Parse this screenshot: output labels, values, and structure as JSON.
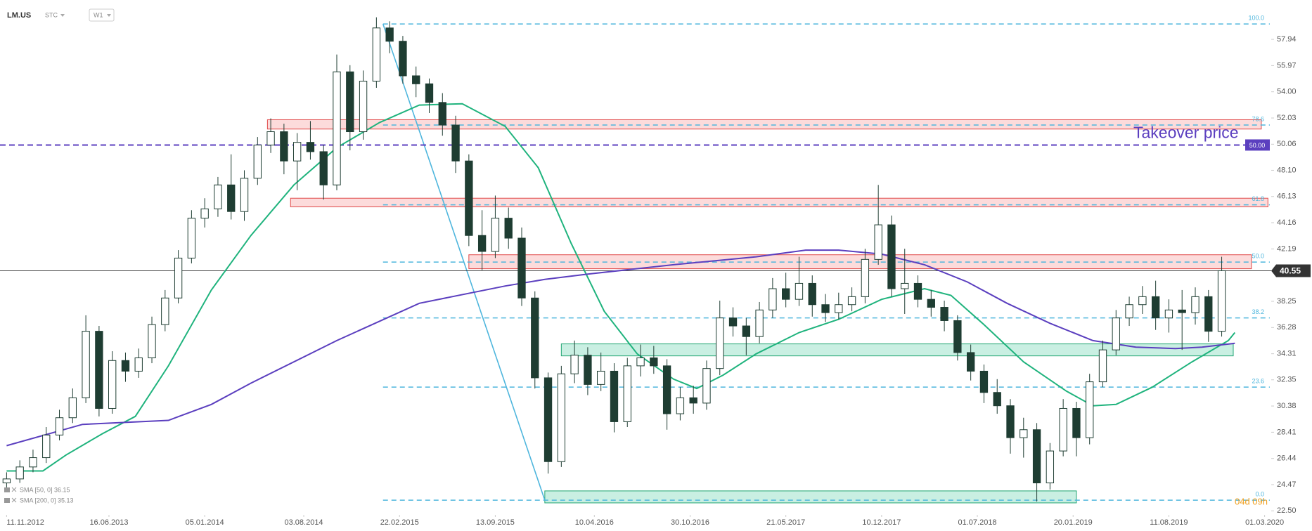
{
  "chart_data": {
    "type": "candlestick",
    "symbol": "LM.US",
    "source": "STC",
    "interval": "W1",
    "countdown": "04d 09h",
    "xlim": [
      -2,
      383
    ],
    "ylim": [
      22.2,
      60.9
    ],
    "xticks": [
      {
        "value": 0,
        "label": "11.11.2012"
      },
      {
        "value": 31,
        "label": "16.06.2013"
      },
      {
        "value": 60,
        "label": "05.01.2014"
      },
      {
        "value": 90,
        "label": "03.08.2014"
      },
      {
        "value": 119,
        "label": "22.02.2015"
      },
      {
        "value": 148,
        "label": "13.09.2015"
      },
      {
        "value": 178,
        "label": "10.04.2016"
      },
      {
        "value": 207,
        "label": "30.10.2016"
      },
      {
        "value": 236,
        "label": "21.05.2017"
      },
      {
        "value": 265,
        "label": "10.12.2017"
      },
      {
        "value": 294,
        "label": "01.07.2018"
      },
      {
        "value": 323,
        "label": "20.01.2019"
      },
      {
        "value": 352,
        "label": "11.08.2019"
      },
      {
        "value": 381,
        "label": "01.03.2020"
      }
    ],
    "yticks": [
      {
        "value": 57.94,
        "label": "57.94"
      },
      {
        "value": 55.97,
        "label": "55.97"
      },
      {
        "value": 54.0,
        "label": "54.00"
      },
      {
        "value": 52.03,
        "label": "52.03"
      },
      {
        "value": 50.06,
        "label": "50.06"
      },
      {
        "value": 48.1,
        "label": "48.10"
      },
      {
        "value": 46.13,
        "label": "46.13"
      },
      {
        "value": 44.16,
        "label": "44.16"
      },
      {
        "value": 42.19,
        "label": "42.19"
      },
      {
        "value": 38.25,
        "label": "38.25"
      },
      {
        "value": 36.28,
        "label": "36.28"
      },
      {
        "value": 34.31,
        "label": "34.31"
      },
      {
        "value": 32.35,
        "label": "32.35"
      },
      {
        "value": 30.38,
        "label": "30.38"
      },
      {
        "value": 28.41,
        "label": "28.41"
      },
      {
        "value": 26.44,
        "label": "26.44"
      },
      {
        "value": 24.47,
        "label": "24.47"
      },
      {
        "value": 22.5,
        "label": "22.50"
      }
    ],
    "up_color": "#ffffff",
    "down_color": "#1e3d32",
    "candles": {
      "x": [
        0,
        4,
        8,
        12,
        16,
        20,
        24,
        28,
        32,
        36,
        40,
        44,
        48,
        52,
        56,
        60,
        64,
        68,
        72,
        76,
        80,
        84,
        88,
        92,
        96,
        100,
        104,
        108,
        112,
        116,
        120,
        124,
        128,
        132,
        136,
        140,
        144,
        148,
        152,
        156,
        160,
        164,
        168,
        172,
        176,
        180,
        184,
        188,
        192,
        196,
        200,
        204,
        208,
        212,
        216,
        220,
        224,
        228,
        232,
        236,
        240,
        244,
        248,
        252,
        256,
        260,
        264,
        268,
        272,
        276,
        280,
        284,
        288,
        292,
        296,
        300,
        304,
        308,
        312,
        316,
        320,
        324,
        328,
        332,
        336,
        340,
        344,
        348,
        352,
        356,
        360,
        364,
        368
      ],
      "open": [
        24.6,
        24.9,
        25.8,
        26.5,
        28.2,
        29.5,
        31,
        36,
        30.2,
        33.8,
        33,
        34,
        36.5,
        38.5,
        41.5,
        44.5,
        45.2,
        47,
        45,
        47.5,
        50,
        51,
        48.8,
        50.2,
        49.5,
        47,
        55.5,
        51,
        54.8,
        58.8,
        57.8,
        55.2,
        54.6,
        53.2,
        51.5,
        48.8,
        43.2,
        42,
        44.5,
        43,
        38.5,
        32.5,
        26.2,
        32.8,
        34.2,
        32,
        33,
        29.2,
        33.4,
        34,
        33.4,
        29.8,
        31,
        30.6,
        33.2,
        37,
        36.4,
        35.6,
        37.6,
        39.2,
        38.4,
        39.6,
        38,
        37.4,
        38,
        38.6,
        41.4,
        44,
        39.2,
        39.6,
        38.4,
        37.8,
        36.8,
        34.4,
        33,
        31.4,
        30.4,
        28,
        28.6,
        24.6,
        27,
        30.2,
        28,
        32.2,
        34.6,
        37,
        38,
        38.6,
        37,
        37.6,
        37.4,
        38.6,
        36
      ],
      "high": [
        25.4,
        26.3,
        27.1,
        28.8,
        30.1,
        31.7,
        37.2,
        36.4,
        34.5,
        34.4,
        34.7,
        37.1,
        39.1,
        42.1,
        45.1,
        46,
        47.6,
        49.3,
        48.1,
        50.6,
        52,
        51.6,
        50.9,
        51.8,
        50,
        56.8,
        56,
        55.6,
        59.6,
        59.3,
        58.2,
        55.9,
        55,
        53.9,
        52.2,
        49.3,
        45.1,
        46.2,
        45.3,
        43.8,
        39,
        32.9,
        33.4,
        35.3,
        34.8,
        34.4,
        33.6,
        34,
        35,
        34.9,
        33.9,
        31.8,
        31.9,
        33.8,
        38.3,
        37.8,
        37,
        38.2,
        40,
        40.4,
        41.6,
        40.2,
        38.8,
        38.9,
        39.3,
        42.2,
        47,
        44.7,
        42.2,
        40.2,
        39.1,
        38.3,
        37.2,
        35,
        33.5,
        32.4,
        30.9,
        29.5,
        29.1,
        27.6,
        30.9,
        30.7,
        32.8,
        35.3,
        37.6,
        38.6,
        39.4,
        39.8,
        38.4,
        39.1,
        39.3,
        39.1,
        41.6
      ],
      "low": [
        24.2,
        24.6,
        25.4,
        26.1,
        27.8,
        29.1,
        30.6,
        29.6,
        29.8,
        32.2,
        32.5,
        33.6,
        36,
        38.1,
        41.1,
        43.8,
        44.6,
        44.4,
        44.3,
        47,
        49.4,
        47.8,
        46.6,
        48.9,
        45.9,
        46.6,
        49.6,
        50.4,
        54.3,
        56.9,
        54.6,
        53.6,
        52.4,
        50.7,
        47.9,
        42.4,
        40.6,
        41.5,
        42.2,
        37.9,
        31.7,
        25.3,
        25.8,
        32.1,
        31.2,
        31.5,
        28.4,
        28.8,
        32.6,
        32.8,
        28.6,
        29.3,
        29.8,
        30.1,
        32.7,
        35.6,
        34.2,
        35.1,
        37,
        37.8,
        37.9,
        37.1,
        36.7,
        36.9,
        37.5,
        38.1,
        41,
        38.6,
        37.3,
        37.8,
        37.1,
        36,
        33.8,
        32.3,
        30.6,
        29.8,
        26.8,
        26.5,
        23.2,
        24.1,
        26.6,
        26.6,
        27.5,
        31.8,
        34.2,
        36.4,
        37.3,
        36.1,
        35.9,
        34.6,
        36.5,
        35.2,
        35.6
      ],
      "close": [
        24.9,
        25.8,
        26.5,
        28.2,
        29.5,
        31,
        36,
        30.2,
        33.8,
        33,
        34,
        36.5,
        38.5,
        41.5,
        44.5,
        45.2,
        47,
        45,
        47.5,
        50,
        51,
        48.8,
        50.2,
        49.5,
        47,
        55.5,
        51,
        54.8,
        58.8,
        57.8,
        55.2,
        54.6,
        53.2,
        51.5,
        48.8,
        43.2,
        42,
        44.5,
        43,
        38.5,
        32.5,
        26.2,
        32.8,
        34.2,
        32,
        33,
        29.2,
        33.4,
        34,
        33.4,
        29.8,
        31,
        30.6,
        33.2,
        37,
        36.4,
        35.6,
        37.6,
        39.2,
        38.4,
        39.6,
        38,
        37.4,
        38,
        38.6,
        41.4,
        44,
        39.2,
        39.6,
        38.4,
        37.8,
        36.8,
        34.4,
        33,
        31.4,
        30.4,
        28,
        28.6,
        24.6,
        27,
        30.2,
        28,
        32.2,
        34.6,
        37,
        38,
        38.6,
        37,
        37.6,
        37.4,
        38.6,
        36,
        40.55
      ]
    },
    "series": [
      {
        "name": "SMA [50, 0] 36.15",
        "color": "#1fb37d",
        "x": [
          0,
          11,
          18,
          29,
          39,
          49,
          62,
          74,
          87,
          100,
          113,
          125,
          138,
          151,
          161,
          171,
          181,
          191,
          202,
          209,
          217,
          227,
          240,
          252,
          265,
          278,
          286,
          296,
          308,
          321,
          329,
          336,
          347,
          359,
          370,
          372
        ],
        "values": [
          25.5,
          25.5,
          26.7,
          28.3,
          29.6,
          33.4,
          39.1,
          43.2,
          47,
          49.8,
          51.7,
          53,
          53.1,
          51.4,
          48.3,
          42.6,
          37.5,
          34.3,
          32.4,
          31.7,
          32.7,
          34.3,
          35.9,
          36.9,
          38.4,
          39.2,
          38.7,
          36.5,
          33.7,
          31.5,
          30.4,
          30.5,
          31.8,
          33.7,
          35.3,
          35.9
        ]
      },
      {
        "name": "SMA [200, 0] 35.13",
        "color": "#5b3fbf",
        "x": [
          0,
          23,
          49,
          62,
          74,
          100,
          125,
          151,
          163,
          176,
          202,
          227,
          242,
          252,
          265,
          278,
          291,
          303,
          316,
          329,
          342,
          354,
          362,
          372
        ],
        "values": [
          27.4,
          29,
          29.3,
          30.5,
          32.1,
          35.3,
          38.1,
          39.4,
          39.9,
          40.3,
          41,
          41.6,
          42.1,
          42.1,
          41.8,
          41,
          39.7,
          38.1,
          36.6,
          35.3,
          34.8,
          34.7,
          34.8,
          35.1
        ]
      }
    ],
    "fib": {
      "x0": 114,
      "color": "#4fb6dd",
      "levels": [
        {
          "name": "100.0",
          "price": 59.1
        },
        {
          "name": "78.6",
          "price": 51.5
        },
        {
          "name": "61.8",
          "price": 45.5
        },
        {
          "name": "50.0",
          "price": 41.2
        },
        {
          "name": "38.2",
          "price": 37.0
        },
        {
          "name": "23.6",
          "price": 31.8
        },
        {
          "name": "0.0",
          "price": 23.3
        }
      ]
    },
    "trendline": {
      "x0": 114,
      "y0": 59.1,
      "x1": 163,
      "y1": 23.3,
      "color": "#4fb6dd"
    },
    "zones": [
      {
        "x0": 79,
        "x1": 380,
        "y0": 51.2,
        "y1": 51.9,
        "color": "red"
      },
      {
        "x0": 86,
        "x1": 382,
        "y0": 45.35,
        "y1": 46.0,
        "color": "red"
      },
      {
        "x0": 140,
        "x1": 377,
        "y0": 40.7,
        "y1": 41.75,
        "color": "red"
      },
      {
        "x0": 168,
        "x1": 371.5,
        "y0": 34.15,
        "y1": 35.05,
        "color": "green"
      },
      {
        "x0": 163,
        "x1": 324,
        "y0": 23.1,
        "y1": 24.0,
        "color": "green"
      }
    ],
    "takeover": {
      "label": "Takeover price",
      "value": 50,
      "value_label": "50.00",
      "color": "#5b3fbf"
    },
    "last_price": {
      "value": 40.55
    }
  }
}
